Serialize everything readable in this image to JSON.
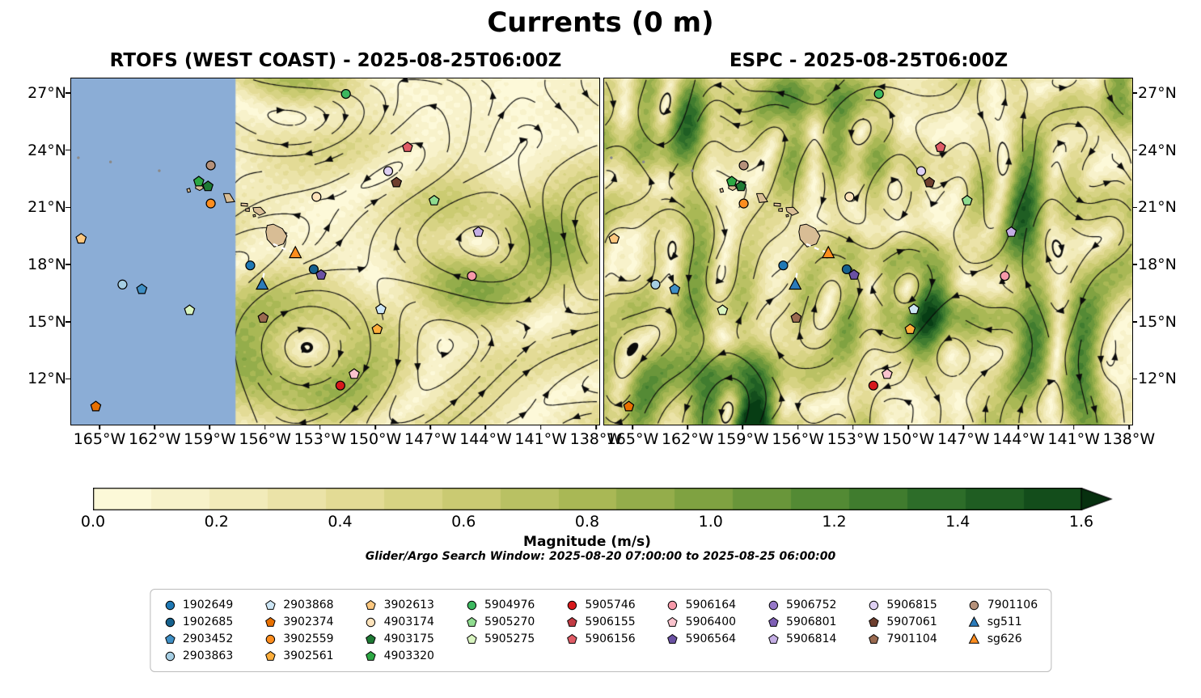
{
  "title": "Currents (0 m)",
  "panels": [
    {
      "title": "RTOFS (WEST COAST) - 2025-08-25T06:00Z"
    },
    {
      "title": "ESPC - 2025-08-25T06:00Z"
    }
  ],
  "colorbar": {
    "label": "Magnitude (m/s)",
    "min": 0.0,
    "max": 1.6,
    "extend": "max",
    "ticks": [
      "0.0",
      "0.2",
      "0.4",
      "0.6",
      "0.8",
      "1.0",
      "1.2",
      "1.4",
      "1.6"
    ]
  },
  "search_window": "Glider/Argo Search Window: 2025-08-20 07:00:00 to 2025-08-25 06:00:00",
  "legend": {
    "columns": [
      [
        {
          "id": "1902649",
          "shape": "circle",
          "color": "#1f78b4"
        },
        {
          "id": "1902685",
          "shape": "circle",
          "color": "#15618d"
        },
        {
          "id": "2903452",
          "shape": "pentagon",
          "color": "#3f8fc5"
        },
        {
          "id": "2903863",
          "shape": "circle",
          "color": "#a6cee3"
        }
      ],
      [
        {
          "id": "2903868",
          "shape": "pentagon",
          "color": "#cde6f5"
        },
        {
          "id": "3902374",
          "shape": "pentagon",
          "color": "#e87000"
        },
        {
          "id": "3902559",
          "shape": "circle",
          "color": "#fd8d1e"
        },
        {
          "id": "3902561",
          "shape": "pentagon",
          "color": "#fdae3b"
        }
      ],
      [
        {
          "id": "3902613",
          "shape": "pentagon",
          "color": "#fdc87f"
        },
        {
          "id": "4903174",
          "shape": "circle",
          "color": "#fde3bb"
        },
        {
          "id": "4903175",
          "shape": "pentagon",
          "color": "#1e7a34"
        },
        {
          "id": "4903320",
          "shape": "pentagon",
          "color": "#2da844"
        }
      ],
      [
        {
          "id": "5904976",
          "shape": "circle",
          "color": "#3cb85f"
        },
        {
          "id": "5905270",
          "shape": "pentagon",
          "color": "#8fdc8f"
        },
        {
          "id": "5905275",
          "shape": "pentagon",
          "color": "#d9f5c0"
        }
      ],
      [
        {
          "id": "5905746",
          "shape": "circle",
          "color": "#d7191c"
        },
        {
          "id": "5906155",
          "shape": "pentagon",
          "color": "#c23b44"
        },
        {
          "id": "5906156",
          "shape": "pentagon",
          "color": "#e05c66"
        }
      ],
      [
        {
          "id": "5906164",
          "shape": "circle",
          "color": "#f799a9"
        },
        {
          "id": "5906400",
          "shape": "pentagon",
          "color": "#fac3cd"
        },
        {
          "id": "5906564",
          "shape": "pentagon",
          "color": "#6a51a3"
        }
      ],
      [
        {
          "id": "5906752",
          "shape": "circle",
          "color": "#9678c8"
        },
        {
          "id": "5906801",
          "shape": "pentagon",
          "color": "#7e5fb5"
        },
        {
          "id": "5906814",
          "shape": "pentagon",
          "color": "#c4aee4"
        }
      ],
      [
        {
          "id": "5906815",
          "shape": "circle",
          "color": "#ded0f2"
        },
        {
          "id": "5907061",
          "shape": "pentagon",
          "color": "#6e3f2e"
        },
        {
          "id": "7901104",
          "shape": "pentagon",
          "color": "#9a6a50"
        }
      ],
      [
        {
          "id": "7901106",
          "shape": "circle",
          "color": "#b5917a"
        },
        {
          "id": "sg511",
          "shape": "triangle",
          "color": "#2b7bba"
        },
        {
          "id": "sg626",
          "shape": "triangle",
          "color": "#fd8d1e"
        }
      ]
    ]
  },
  "chart_data": {
    "type": "map-streamplot",
    "title": "Currents (0 m)",
    "panels": [
      {
        "name": "RTOFS (WEST COAST)",
        "time": "2025-08-25T06:00Z",
        "no_data_region": {
          "lon_max": -157.6,
          "color": "#8badd6"
        }
      },
      {
        "name": "ESPC",
        "time": "2025-08-25T06:00Z",
        "no_data_region": null
      }
    ],
    "extent": {
      "lon_min": -166.54,
      "lon_max": -137.82,
      "lat_min": 9.6,
      "lat_max": 27.76
    },
    "lon_ticks": [
      {
        "lon": -165,
        "label": "165°W"
      },
      {
        "lon": -162,
        "label": "162°W"
      },
      {
        "lon": -159,
        "label": "159°W"
      },
      {
        "lon": -156,
        "label": "156°W"
      },
      {
        "lon": -153,
        "label": "153°W"
      },
      {
        "lon": -150,
        "label": "150°W"
      },
      {
        "lon": -147,
        "label": "147°W"
      },
      {
        "lon": -144,
        "label": "144°W"
      },
      {
        "lon": -141,
        "label": "141°W"
      },
      {
        "lon": -138,
        "label": "138°W"
      }
    ],
    "lat_ticks": [
      {
        "lat": 27,
        "label": "27°N"
      },
      {
        "lat": 24,
        "label": "24°N"
      },
      {
        "lat": 21,
        "label": "21°N"
      },
      {
        "lat": 18,
        "label": "18°N"
      },
      {
        "lat": 15,
        "label": "15°N"
      },
      {
        "lat": 12,
        "label": "12°N"
      }
    ],
    "floats": [
      {
        "id": "1902649",
        "lon": -156.8,
        "lat": 17.95
      },
      {
        "id": "1902685",
        "lon": -153.35,
        "lat": 17.75
      },
      {
        "id": "2903452",
        "lon": -162.7,
        "lat": 16.7
      },
      {
        "id": "2903863",
        "lon": -163.75,
        "lat": 16.95
      },
      {
        "id": "2903868",
        "lon": -149.7,
        "lat": 15.65
      },
      {
        "id": "3902374",
        "lon": -165.2,
        "lat": 10.55
      },
      {
        "id": "3902559",
        "lon": -158.95,
        "lat": 21.2
      },
      {
        "id": "3902561",
        "lon": -149.9,
        "lat": 14.6
      },
      {
        "id": "3902613",
        "lon": -166.0,
        "lat": 19.35
      },
      {
        "id": "4903174",
        "lon": -153.2,
        "lat": 21.55
      },
      {
        "id": "4903175",
        "lon": -159.1,
        "lat": 22.1
      },
      {
        "id": "4903320",
        "lon": -159.6,
        "lat": 22.35
      },
      {
        "id": "5904976",
        "lon": -151.6,
        "lat": 26.95
      },
      {
        "id": "5905270",
        "lon": -146.8,
        "lat": 21.35
      },
      {
        "id": "5905275",
        "lon": -160.1,
        "lat": 15.6
      },
      {
        "id": "5905746",
        "lon": -151.9,
        "lat": 11.65
      },
      {
        "id": "5906156",
        "lon": -148.25,
        "lat": 24.15
      },
      {
        "id": "5906164",
        "lon": -144.75,
        "lat": 17.4
      },
      {
        "id": "5906400",
        "lon": -151.15,
        "lat": 12.25
      },
      {
        "id": "5906564",
        "lon": -152.95,
        "lat": 17.45
      },
      {
        "id": "5906814",
        "lon": -144.4,
        "lat": 19.7
      },
      {
        "id": "5906815",
        "lon": -149.3,
        "lat": 22.9
      },
      {
        "id": "5907061",
        "lon": -148.85,
        "lat": 22.3
      },
      {
        "id": "7901104",
        "lon": -156.1,
        "lat": 15.2
      },
      {
        "id": "7901106",
        "lon": -158.95,
        "lat": 23.2
      },
      {
        "id": "sg511",
        "lon": -156.15,
        "lat": 16.95
      },
      {
        "id": "sg626",
        "lon": -154.35,
        "lat": 18.6
      }
    ],
    "gliders": [
      {
        "id": "sg511",
        "track": [
          [
            -156.05,
            17.55
          ],
          [
            -156.18,
            16.98
          ]
        ]
      },
      {
        "id": "sg626",
        "track": [
          [
            -155.55,
            19.08
          ],
          [
            -154.95,
            18.82
          ],
          [
            -154.4,
            18.62
          ]
        ]
      }
    ],
    "islands": {
      "fill": "#d8bd95",
      "polygons": [
        {
          "name": "hawaii",
          "points": [
            [
              -155.88,
              20.05
            ],
            [
              -155.55,
              20.12
            ],
            [
              -155.05,
              19.88
            ],
            [
              -154.8,
              19.5
            ],
            [
              -155.0,
              19.08
            ],
            [
              -155.5,
              18.92
            ],
            [
              -155.88,
              19.32
            ],
            [
              -155.95,
              19.72
            ]
          ]
        },
        {
          "name": "maui",
          "points": [
            [
              -156.65,
              20.98
            ],
            [
              -156.25,
              21.0
            ],
            [
              -155.97,
              20.72
            ],
            [
              -156.3,
              20.58
            ],
            [
              -156.6,
              20.78
            ]
          ]
        },
        {
          "name": "oahu",
          "points": [
            [
              -158.25,
              21.72
            ],
            [
              -157.92,
              21.72
            ],
            [
              -157.65,
              21.3
            ],
            [
              -158.1,
              21.25
            ]
          ]
        },
        {
          "name": "molokai",
          "points": [
            [
              -157.3,
              21.22
            ],
            [
              -156.95,
              21.2
            ],
            [
              -156.95,
              21.05
            ],
            [
              -157.3,
              21.08
            ]
          ]
        },
        {
          "name": "lanai",
          "points": [
            [
              -157.05,
              20.92
            ],
            [
              -156.85,
              20.95
            ],
            [
              -156.85,
              20.78
            ],
            [
              -157.05,
              20.8
            ]
          ]
        },
        {
          "name": "kahoolawe",
          "points": [
            [
              -156.65,
              20.6
            ],
            [
              -156.53,
              20.62
            ],
            [
              -156.51,
              20.52
            ],
            [
              -156.63,
              20.5
            ]
          ]
        },
        {
          "name": "kauai",
          "points": [
            [
              -159.75,
              22.2
            ],
            [
              -159.45,
              22.22
            ],
            [
              -159.35,
              22.0
            ],
            [
              -159.55,
              21.88
            ],
            [
              -159.78,
              22.0
            ]
          ]
        },
        {
          "name": "niihau",
          "points": [
            [
              -160.25,
              21.95
            ],
            [
              -160.1,
              22.0
            ],
            [
              -160.05,
              21.82
            ],
            [
              -160.2,
              21.78
            ]
          ]
        }
      ],
      "specks": [
        [
          -166.15,
          23.6
        ],
        [
          -164.4,
          23.38
        ],
        [
          -161.75,
          22.92
        ]
      ]
    },
    "colormap_stops": [
      "#fffde0",
      "#f5eec2",
      "#e6dd9a",
      "#cdcc74",
      "#a9b855",
      "#7da140",
      "#4e8733",
      "#276827",
      "#0d4518"
    ]
  }
}
